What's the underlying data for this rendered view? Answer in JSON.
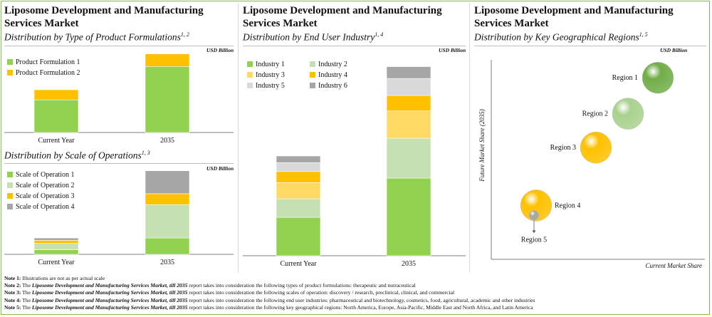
{
  "unit_label": "USD Billion",
  "panels": {
    "p1_title": "Liposome Development and Manufacturing Services Market",
    "p2_title": "Liposome Development and Manufacturing Services Market",
    "p3_title": "Liposome Development and Manufacturing Services Market"
  },
  "colors": {
    "green_dark": "#92d050",
    "green_light": "#c6e0b4",
    "yellow_light": "#ffd966",
    "orange": "#ffc000",
    "gray_light": "#d9d9d9",
    "gray_dark": "#a6a6a6"
  },
  "chart_data": [
    {
      "id": "product",
      "type": "bar",
      "stacked": true,
      "subtitle": "Distribution by Type of Product Formulations",
      "subtitle_sup": "1, 2",
      "categories": [
        "Current Year",
        "2035"
      ],
      "series": [
        {
          "name": "Product Formulation 1",
          "color": "#92d050",
          "values": [
            42,
            85
          ]
        },
        {
          "name": "Product Formulation 2",
          "color": "#ffc000",
          "values": [
            13,
            22
          ]
        }
      ],
      "ylim": [
        0,
        110
      ]
    },
    {
      "id": "scale",
      "type": "bar",
      "stacked": true,
      "subtitle": "Distribution by Scale of Operations",
      "subtitle_sup": "1, 3",
      "categories": [
        "Current Year",
        "2035"
      ],
      "series": [
        {
          "name": "Scale of Operation 1",
          "color": "#92d050",
          "values": [
            6,
            21
          ]
        },
        {
          "name": "Scale of Operation 2",
          "color": "#c6e0b4",
          "values": [
            8,
            43
          ]
        },
        {
          "name": "Scale of Operation 3",
          "color": "#ffc000",
          "values": [
            4,
            14
          ]
        },
        {
          "name": "Scale of Operation 4",
          "color": "#a6a6a6",
          "values": [
            3,
            32
          ]
        }
      ],
      "ylim": [
        0,
        110
      ]
    },
    {
      "id": "enduser",
      "type": "bar",
      "stacked": true,
      "subtitle": "Distribution by End User Industry",
      "subtitle_sup": "1, 4",
      "categories": [
        "Current Year",
        "2035"
      ],
      "series": [
        {
          "name": "Industry 1",
          "color": "#92d050",
          "values": [
            52,
            105
          ]
        },
        {
          "name": "Industry 2",
          "color": "#c6e0b4",
          "values": [
            25,
            54
          ]
        },
        {
          "name": "Industry 3",
          "color": "#ffd966",
          "values": [
            22,
            37
          ]
        },
        {
          "name": "Industry 4",
          "color": "#ffc000",
          "values": [
            15,
            21
          ]
        },
        {
          "name": "Industry 5",
          "color": "#d9d9d9",
          "values": [
            12,
            23
          ]
        },
        {
          "name": "Industry 6",
          "color": "#a6a6a6",
          "values": [
            9,
            16
          ]
        }
      ],
      "ylim": [
        0,
        270
      ]
    },
    {
      "id": "regions",
      "type": "scatter",
      "bubble": true,
      "subtitle": "Distribution by Key Geographical Regions",
      "subtitle_sup": "1, 5",
      "xlabel": "Current Market Share",
      "ylabel": "Future Market Share (2035)",
      "xlim": [
        0,
        100
      ],
      "ylim": [
        0,
        100
      ],
      "points": [
        {
          "name": "Region 1",
          "x": 78,
          "y": 91,
          "size": 22,
          "color": "#70ad47",
          "label_side": "left"
        },
        {
          "name": "Region 2",
          "x": 64,
          "y": 73,
          "size": 22,
          "color": "#a9d18e",
          "label_side": "left"
        },
        {
          "name": "Region 3",
          "x": 49,
          "y": 56,
          "size": 22,
          "color": "#ffc000",
          "label_side": "left"
        },
        {
          "name": "Region 4",
          "x": 21,
          "y": 27,
          "size": 22,
          "color": "#ffc000",
          "label_side": "right"
        },
        {
          "name": "Region 5",
          "x": 20,
          "y": 22,
          "size": 7,
          "color": "#a6a6a6",
          "label_side": "below"
        }
      ]
    }
  ],
  "notes": [
    {
      "label": "Note 1:",
      "plain": " Illustrations are not as per actual scale",
      "italic": "",
      "rest": ""
    },
    {
      "label": "Note 2:",
      "plain": " The ",
      "italic": "Liposome Development and Manufacturing Services Market, till 2035",
      "rest": " report takes into consideration the following types of product formulations: therapeutic and nutraceutical"
    },
    {
      "label": "Note 3:",
      "plain": " The ",
      "italic": "Liposome Development and Manufacturing Services Market, till 2035",
      "rest": " report takes into consideration the following scales of operation: discovery / research, preclinical, clinical, and commercial"
    },
    {
      "label": "Note 4:",
      "plain": " The ",
      "italic": "Liposome Development and Manufacturing Services Market, till 2035",
      "rest": " report takes into consideration the following end user industries: pharmaceutical and biotechnology, cosmetics, food, agricultural, academic and other industries"
    },
    {
      "label": "Note 5:",
      "plain": " The ",
      "italic": "Liposome Development and Manufacturing Services Market, till 2035",
      "rest": " report takes into consideration the following key geographical regions: North America, Europe, Asia-Pacific, Middle East and North Africa, and Latin America"
    }
  ]
}
